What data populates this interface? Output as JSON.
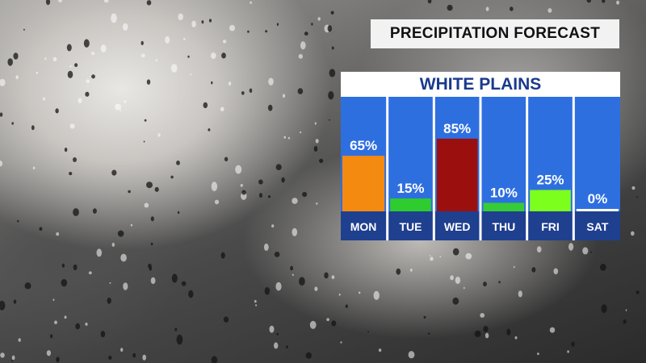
{
  "header": {
    "title": "PRECIPITATION FORECAST"
  },
  "location": "WHITE PLAINS",
  "colors": {
    "column_bg": "#2e6fe0",
    "day_bar": "#1f3f8f",
    "label_text": "#ffffff",
    "divider": "#ffffff"
  },
  "chart_data": {
    "type": "bar",
    "categories": [
      "MON",
      "TUE",
      "WED",
      "THU",
      "FRI",
      "SAT"
    ],
    "values": [
      65,
      15,
      85,
      10,
      25,
      0
    ],
    "value_labels": [
      "65%",
      "15%",
      "85%",
      "10%",
      "25%",
      "0%"
    ],
    "bar_colors": [
      "#f58a11",
      "#2ecc2e",
      "#9b0f0f",
      "#37cc37",
      "#7dff1e",
      "#ffffff"
    ],
    "ylim": [
      0,
      100
    ],
    "title": "WHITE PLAINS"
  }
}
